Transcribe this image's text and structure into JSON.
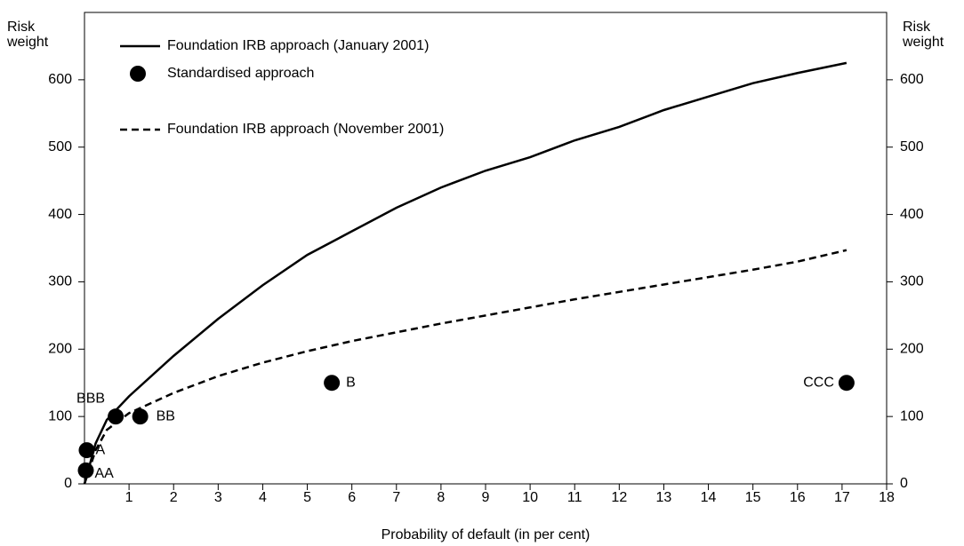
{
  "chart_data": {
    "type": "line",
    "xlabel": "Probability of default (in per cent)",
    "ylabel": [
      "Risk",
      "weight"
    ],
    "y2label": [
      "Risk",
      "weight"
    ],
    "xlim": [
      0,
      18
    ],
    "xticks": [
      1,
      2,
      3,
      4,
      5,
      6,
      7,
      8,
      9,
      10,
      11,
      12,
      13,
      14,
      15,
      16,
      17,
      18
    ],
    "ylim": [
      0,
      700
    ],
    "yticks": [
      0,
      100,
      200,
      300,
      400,
      500,
      600
    ],
    "y2lim": [
      0,
      700
    ],
    "y2ticks": [
      0,
      100,
      200,
      300,
      400,
      500,
      600
    ],
    "series": [
      {
        "name": "Foundation IRB approach (January 2001)",
        "type": "line",
        "style": "solid",
        "color": "#000000",
        "x": [
          0,
          0.25,
          0.5,
          1,
          2,
          3,
          4,
          5,
          6,
          7,
          8,
          9,
          10,
          11,
          12,
          13,
          14,
          15,
          16,
          17.1
        ],
        "values": [
          0,
          60,
          95,
          130,
          190,
          245,
          295,
          340,
          375,
          410,
          440,
          465,
          485,
          510,
          530,
          555,
          575,
          595,
          610,
          625
        ]
      },
      {
        "name": "Standardised approach",
        "type": "scatter",
        "color": "#000000",
        "x": [
          0.03,
          0.05,
          0.7,
          1.25,
          5.55,
          17.1
        ],
        "values": [
          20,
          50,
          100,
          100,
          150,
          150
        ],
        "point_labels": [
          "AA",
          "A",
          "BBB",
          "BB",
          "B",
          "CCC"
        ]
      },
      {
        "name": "Foundation IRB approach (November 2001)",
        "type": "line",
        "style": "dashed",
        "color": "#000000",
        "x": [
          0,
          0.25,
          0.5,
          1,
          2,
          3,
          4,
          5,
          6,
          7,
          8,
          9,
          10,
          11,
          12,
          13,
          14,
          15,
          16,
          17.1
        ],
        "values": [
          0,
          50,
          80,
          105,
          135,
          160,
          180,
          197,
          212,
          225,
          238,
          250,
          262,
          274,
          285,
          296,
          307,
          318,
          330,
          347
        ]
      }
    ]
  }
}
